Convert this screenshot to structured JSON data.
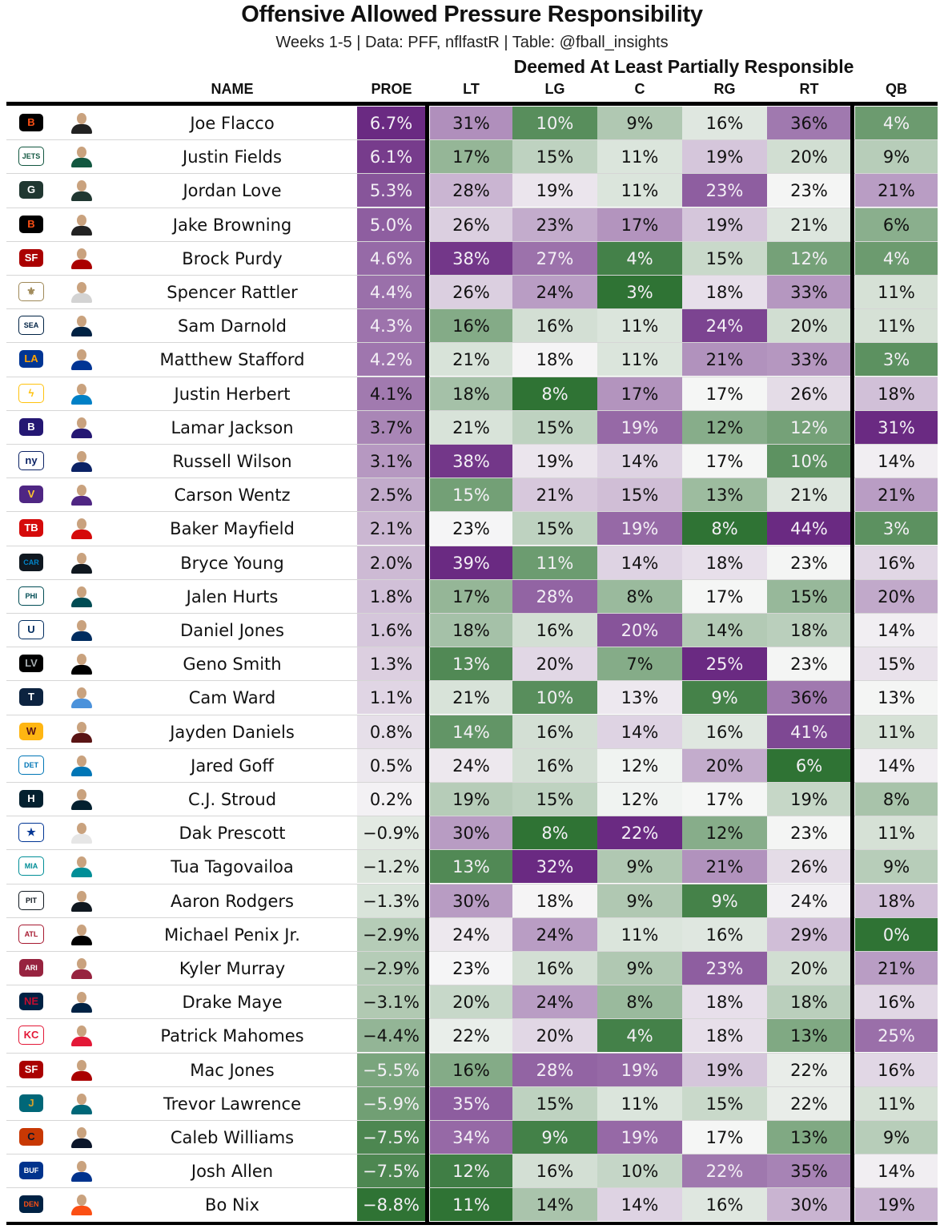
{
  "title": "Offensive Allowed Pressure Responsibility",
  "subtitle": "Weeks 1-5 | Data: PFF, nflfastR | Table: @fball_insights",
  "spanner": "Deemed At Least Partially Responsible",
  "headers": {
    "name": "NAME",
    "proe": "PROE",
    "lt": "LT",
    "lg": "LG",
    "c": "C",
    "rg": "RG",
    "rt": "RT",
    "qb": "QB"
  },
  "colors": {
    "purple_max": "#6a2a82",
    "neutral": "#f7f7f7",
    "green_max": "#2f7334"
  },
  "chart_data": {
    "type": "table",
    "title": "Offensive Allowed Pressure Responsibility",
    "subtitle": "Weeks 1-5 | Data: PFF, nflfastR | Table: @fball_insights",
    "columns": [
      "NAME",
      "PROE",
      "LT",
      "LG",
      "C",
      "RG",
      "RT",
      "QB"
    ],
    "rows": [
      {
        "team": "CIN",
        "name": "Joe Flacco",
        "proe": "6.7%",
        "lt": "31%",
        "lg": "10%",
        "c": "9%",
        "rg": "16%",
        "rt": "36%",
        "qb": "4%"
      },
      {
        "team": "NYJ",
        "name": "Justin Fields",
        "proe": "6.1%",
        "lt": "17%",
        "lg": "15%",
        "c": "11%",
        "rg": "19%",
        "rt": "20%",
        "qb": "9%"
      },
      {
        "team": "GB",
        "name": "Jordan Love",
        "proe": "5.3%",
        "lt": "28%",
        "lg": "19%",
        "c": "11%",
        "rg": "23%",
        "rt": "23%",
        "qb": "21%"
      },
      {
        "team": "CIN",
        "name": "Jake Browning",
        "proe": "5.0%",
        "lt": "26%",
        "lg": "23%",
        "c": "17%",
        "rg": "19%",
        "rt": "21%",
        "qb": "6%"
      },
      {
        "team": "SF",
        "name": "Brock Purdy",
        "proe": "4.6%",
        "lt": "38%",
        "lg": "27%",
        "c": "4%",
        "rg": "15%",
        "rt": "12%",
        "qb": "4%"
      },
      {
        "team": "NO",
        "name": "Spencer Rattler",
        "proe": "4.4%",
        "lt": "26%",
        "lg": "24%",
        "c": "3%",
        "rg": "18%",
        "rt": "33%",
        "qb": "11%"
      },
      {
        "team": "SEA",
        "name": "Sam Darnold",
        "proe": "4.3%",
        "lt": "16%",
        "lg": "16%",
        "c": "11%",
        "rg": "24%",
        "rt": "20%",
        "qb": "11%"
      },
      {
        "team": "LA",
        "name": "Matthew Stafford",
        "proe": "4.2%",
        "lt": "21%",
        "lg": "18%",
        "c": "11%",
        "rg": "21%",
        "rt": "33%",
        "qb": "3%"
      },
      {
        "team": "LAC",
        "name": "Justin Herbert",
        "proe": "4.1%",
        "lt": "18%",
        "lg": "8%",
        "c": "17%",
        "rg": "17%",
        "rt": "26%",
        "qb": "18%"
      },
      {
        "team": "BAL",
        "name": "Lamar Jackson",
        "proe": "3.7%",
        "lt": "21%",
        "lg": "15%",
        "c": "19%",
        "rg": "12%",
        "rt": "12%",
        "qb": "31%"
      },
      {
        "team": "NYG",
        "name": "Russell Wilson",
        "proe": "3.1%",
        "lt": "38%",
        "lg": "19%",
        "c": "14%",
        "rg": "17%",
        "rt": "10%",
        "qb": "14%"
      },
      {
        "team": "MIN",
        "name": "Carson Wentz",
        "proe": "2.5%",
        "lt": "15%",
        "lg": "21%",
        "c": "15%",
        "rg": "13%",
        "rt": "21%",
        "qb": "21%"
      },
      {
        "team": "TB",
        "name": "Baker Mayfield",
        "proe": "2.1%",
        "lt": "23%",
        "lg": "15%",
        "c": "19%",
        "rg": "8%",
        "rt": "44%",
        "qb": "3%"
      },
      {
        "team": "CAR",
        "name": "Bryce Young",
        "proe": "2.0%",
        "lt": "39%",
        "lg": "11%",
        "c": "14%",
        "rg": "18%",
        "rt": "23%",
        "qb": "16%"
      },
      {
        "team": "PHI",
        "name": "Jalen Hurts",
        "proe": "1.8%",
        "lt": "17%",
        "lg": "28%",
        "c": "8%",
        "rg": "17%",
        "rt": "15%",
        "qb": "20%"
      },
      {
        "team": "IND",
        "name": "Daniel Jones",
        "proe": "1.6%",
        "lt": "18%",
        "lg": "16%",
        "c": "20%",
        "rg": "14%",
        "rt": "18%",
        "qb": "14%"
      },
      {
        "team": "LV",
        "name": "Geno Smith",
        "proe": "1.3%",
        "lt": "13%",
        "lg": "20%",
        "c": "7%",
        "rg": "25%",
        "rt": "23%",
        "qb": "15%"
      },
      {
        "team": "TEN",
        "name": "Cam Ward",
        "proe": "1.1%",
        "lt": "21%",
        "lg": "10%",
        "c": "13%",
        "rg": "9%",
        "rt": "36%",
        "qb": "13%"
      },
      {
        "team": "WAS",
        "name": "Jayden Daniels",
        "proe": "0.8%",
        "lt": "14%",
        "lg": "16%",
        "c": "14%",
        "rg": "16%",
        "rt": "41%",
        "qb": "11%"
      },
      {
        "team": "DET",
        "name": "Jared Goff",
        "proe": "0.5%",
        "lt": "24%",
        "lg": "16%",
        "c": "12%",
        "rg": "20%",
        "rt": "6%",
        "qb": "14%"
      },
      {
        "team": "HOU",
        "name": "C.J. Stroud",
        "proe": "0.2%",
        "lt": "19%",
        "lg": "15%",
        "c": "12%",
        "rg": "17%",
        "rt": "19%",
        "qb": "8%"
      },
      {
        "team": "DAL",
        "name": "Dak Prescott",
        "proe": "−0.9%",
        "lt": "30%",
        "lg": "8%",
        "c": "22%",
        "rg": "12%",
        "rt": "23%",
        "qb": "11%"
      },
      {
        "team": "MIA",
        "name": "Tua Tagovailoa",
        "proe": "−1.2%",
        "lt": "13%",
        "lg": "32%",
        "c": "9%",
        "rg": "21%",
        "rt": "26%",
        "qb": "9%"
      },
      {
        "team": "PIT",
        "name": "Aaron Rodgers",
        "proe": "−1.3%",
        "lt": "30%",
        "lg": "18%",
        "c": "9%",
        "rg": "9%",
        "rt": "24%",
        "qb": "18%"
      },
      {
        "team": "ATL",
        "name": "Michael Penix Jr.",
        "proe": "−2.9%",
        "lt": "24%",
        "lg": "24%",
        "c": "11%",
        "rg": "16%",
        "rt": "29%",
        "qb": "0%"
      },
      {
        "team": "ARI",
        "name": "Kyler Murray",
        "proe": "−2.9%",
        "lt": "23%",
        "lg": "16%",
        "c": "9%",
        "rg": "23%",
        "rt": "20%",
        "qb": "21%"
      },
      {
        "team": "NE",
        "name": "Drake Maye",
        "proe": "−3.1%",
        "lt": "20%",
        "lg": "24%",
        "c": "8%",
        "rg": "18%",
        "rt": "18%",
        "qb": "16%"
      },
      {
        "team": "KC",
        "name": "Patrick Mahomes",
        "proe": "−4.4%",
        "lt": "22%",
        "lg": "20%",
        "c": "4%",
        "rg": "18%",
        "rt": "13%",
        "qb": "25%"
      },
      {
        "team": "SF",
        "name": "Mac Jones",
        "proe": "−5.5%",
        "lt": "16%",
        "lg": "28%",
        "c": "19%",
        "rg": "19%",
        "rt": "22%",
        "qb": "16%"
      },
      {
        "team": "JAX",
        "name": "Trevor Lawrence",
        "proe": "−5.9%",
        "lt": "35%",
        "lg": "15%",
        "c": "11%",
        "rg": "15%",
        "rt": "22%",
        "qb": "11%"
      },
      {
        "team": "CHI",
        "name": "Caleb Williams",
        "proe": "−7.5%",
        "lt": "34%",
        "lg": "9%",
        "c": "19%",
        "rg": "17%",
        "rt": "13%",
        "qb": "9%"
      },
      {
        "team": "BUF",
        "name": "Josh Allen",
        "proe": "−7.5%",
        "lt": "12%",
        "lg": "16%",
        "c": "10%",
        "rg": "22%",
        "rt": "35%",
        "qb": "14%"
      },
      {
        "team": "DEN",
        "name": "Bo Nix",
        "proe": "−8.8%",
        "lt": "11%",
        "lg": "14%",
        "c": "14%",
        "rg": "16%",
        "rt": "30%",
        "qb": "19%"
      }
    ]
  },
  "team_styles": {
    "CIN": {
      "mark": "B",
      "fg": "#fb4f14",
      "bg": "#000000",
      "jersey": "#222222"
    },
    "NYJ": {
      "mark": "JETS",
      "fg": "#125740",
      "bg": "#ffffff",
      "jersey": "#125740"
    },
    "GB": {
      "mark": "G",
      "fg": "#ffffff",
      "bg": "#203731",
      "jersey": "#203731"
    },
    "SF": {
      "mark": "SF",
      "fg": "#ffffff",
      "bg": "#aa0000",
      "jersey": "#aa0000"
    },
    "NO": {
      "mark": "⚜",
      "fg": "#9f8958",
      "bg": "#ffffff",
      "jersey": "#d3d3d3"
    },
    "SEA": {
      "mark": "SEA",
      "fg": "#002244",
      "bg": "#ffffff",
      "jersey": "#002244"
    },
    "LA": {
      "mark": "LA",
      "fg": "#ffa300",
      "bg": "#003594",
      "jersey": "#003594"
    },
    "LAC": {
      "mark": "ϟ",
      "fg": "#ffc20e",
      "bg": "#ffffff",
      "jersey": "#0080c6"
    },
    "BAL": {
      "mark": "B",
      "fg": "#ffffff",
      "bg": "#241773",
      "jersey": "#241773"
    },
    "NYG": {
      "mark": "ny",
      "fg": "#0b2265",
      "bg": "#ffffff",
      "jersey": "#0b2265"
    },
    "MIN": {
      "mark": "V",
      "fg": "#ffc62f",
      "bg": "#4f2683",
      "jersey": "#4f2683"
    },
    "TB": {
      "mark": "TB",
      "fg": "#ffffff",
      "bg": "#d50a0a",
      "jersey": "#d50a0a"
    },
    "CAR": {
      "mark": "CAR",
      "fg": "#0085ca",
      "bg": "#101820",
      "jersey": "#101820"
    },
    "PHI": {
      "mark": "PHI",
      "fg": "#004c54",
      "bg": "#ffffff",
      "jersey": "#004c54"
    },
    "IND": {
      "mark": "U",
      "fg": "#002c5f",
      "bg": "#ffffff",
      "jersey": "#002c5f"
    },
    "LV": {
      "mark": "LV",
      "fg": "#a5acaf",
      "bg": "#000000",
      "jersey": "#000000"
    },
    "TEN": {
      "mark": "T",
      "fg": "#ffffff",
      "bg": "#0c2340",
      "jersey": "#4b92db"
    },
    "WAS": {
      "mark": "W",
      "fg": "#5a1414",
      "bg": "#ffb612",
      "jersey": "#5a1414"
    },
    "DET": {
      "mark": "DET",
      "fg": "#0076b6",
      "bg": "#ffffff",
      "jersey": "#0076b6"
    },
    "HOU": {
      "mark": "H",
      "fg": "#ffffff",
      "bg": "#03202f",
      "jersey": "#03202f"
    },
    "DAL": {
      "mark": "★",
      "fg": "#003594",
      "bg": "#ffffff",
      "jersey": "#e6e6e6"
    },
    "MIA": {
      "mark": "MIA",
      "fg": "#008e97",
      "bg": "#ffffff",
      "jersey": "#008e97"
    },
    "PIT": {
      "mark": "PIT",
      "fg": "#101820",
      "bg": "#ffffff",
      "jersey": "#101820"
    },
    "ATL": {
      "mark": "ATL",
      "fg": "#a71930",
      "bg": "#ffffff",
      "jersey": "#000000"
    },
    "ARI": {
      "mark": "ARI",
      "fg": "#ffffff",
      "bg": "#97233f",
      "jersey": "#97233f"
    },
    "NE": {
      "mark": "NE",
      "fg": "#c60c30",
      "bg": "#002244",
      "jersey": "#002244"
    },
    "KC": {
      "mark": "KC",
      "fg": "#e31837",
      "bg": "#ffffff",
      "jersey": "#e31837"
    },
    "JAX": {
      "mark": "J",
      "fg": "#d7a22a",
      "bg": "#006778",
      "jersey": "#006778"
    },
    "CHI": {
      "mark": "C",
      "fg": "#0b162a",
      "bg": "#c83803",
      "jersey": "#0b162a"
    },
    "BUF": {
      "mark": "BUF",
      "fg": "#ffffff",
      "bg": "#00338d",
      "jersey": "#00338d"
    },
    "DEN": {
      "mark": "DEN",
      "fg": "#fb4f14",
      "bg": "#002244",
      "jersey": "#fb4f14"
    }
  }
}
